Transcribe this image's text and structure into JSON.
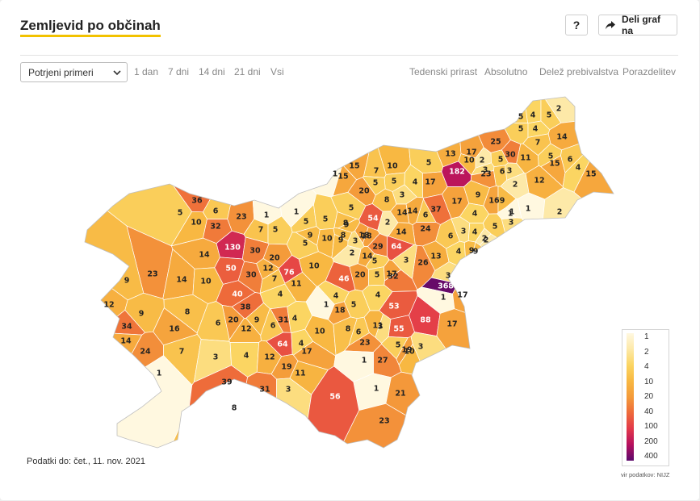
{
  "header": {
    "title": "Zemljevid po občinah",
    "help_label": "?",
    "share_label": "Deli graf na",
    "share_icon": "share-arrow-icon"
  },
  "controls": {
    "case_select": {
      "value": "Potrjeni primeri",
      "icon": "chevron-down-icon"
    },
    "time_tabs": [
      {
        "label": "1 dan",
        "active": true
      },
      {
        "label": "7 dni",
        "active": false
      },
      {
        "label": "14 dni",
        "active": false
      },
      {
        "label": "21 dni",
        "active": false
      },
      {
        "label": "Vsi",
        "active": false
      }
    ],
    "mode_tabs": [
      {
        "label": "Tedenski prirast",
        "active": false
      },
      {
        "label": "Absolutno",
        "active": true
      },
      {
        "label": "Delež prebivalstva",
        "active": false
      },
      {
        "label": "Porazdelitev",
        "active": false
      }
    ]
  },
  "map": {
    "region": "Slovenija",
    "municipality_values": [
      5,
      4,
      5,
      2,
      5,
      4,
      7,
      14,
      25,
      30,
      11,
      5,
      15,
      6,
      4,
      15,
      13,
      17,
      182,
      10,
      2,
      3,
      23,
      5,
      6,
      3,
      16,
      2,
      12,
      9,
      1,
      15,
      7,
      15,
      10,
      5,
      5,
      4,
      17,
      5,
      20,
      8,
      3,
      14,
      6,
      37,
      17,
      9,
      4,
      1,
      1,
      3,
      5,
      2,
      1,
      2,
      36,
      5,
      10,
      6,
      23,
      1,
      1,
      9,
      5,
      5,
      8,
      5,
      9,
      8,
      18,
      54,
      2,
      14,
      24,
      6,
      3,
      4,
      2,
      9,
      32,
      130,
      30,
      7,
      5,
      10,
      9,
      3,
      18,
      29,
      64,
      14,
      13,
      4,
      9,
      14,
      20,
      12,
      50,
      76,
      10,
      5,
      2,
      14,
      5,
      20,
      5,
      17,
      26,
      23,
      14,
      10,
      30,
      7,
      11,
      46,
      32,
      3,
      3,
      368,
      1,
      4,
      1,
      4,
      5,
      17,
      12,
      9,
      8,
      40,
      53,
      9,
      38,
      20,
      9,
      31,
      4,
      4,
      18,
      6,
      11,
      55,
      88,
      17,
      34,
      16,
      6,
      14,
      24,
      12,
      6,
      10,
      8,
      3,
      5,
      10,
      7,
      64,
      17,
      4,
      23,
      27,
      19,
      3,
      1,
      3,
      4,
      12,
      19,
      11,
      1,
      1,
      21,
      39,
      31,
      3,
      8,
      56,
      23
    ]
  },
  "legend": {
    "ticks": [
      "1",
      "2",
      "4",
      "10",
      "20",
      "40",
      "100",
      "200",
      "400"
    ],
    "colors": [
      "#fff8e0",
      "#fde9a8",
      "#fbd562",
      "#f8b842",
      "#f49b3a",
      "#ee6a3a",
      "#e2384a",
      "#b50f5e",
      "#5c0a6b"
    ]
  },
  "footnote": "Podatki do: čet., 11. nov. 2021",
  "source": "vir podatkov: NIJZ"
}
